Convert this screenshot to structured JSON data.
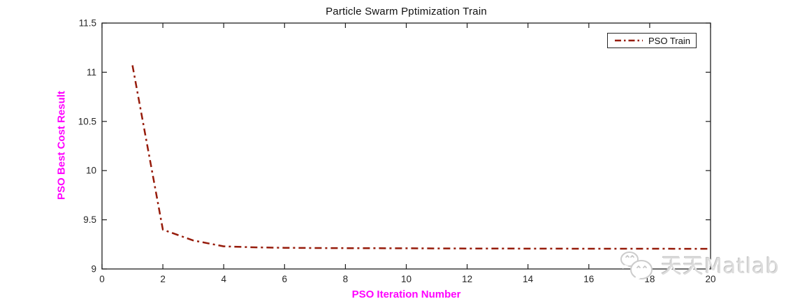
{
  "title": "Particle Swarm Pptimization Train",
  "legend": {
    "label": "PSO Train"
  },
  "watermark": {
    "text": "天天Matlab",
    "icon": "chat-bubbles-icon"
  },
  "colors": {
    "line": "#961B0A",
    "axis": "#1f1f1f",
    "tick_label": "#262626",
    "axis_label": "#FF00FF",
    "title": "#111111",
    "legend_border": "#262626",
    "background": "#FFFFFF",
    "watermark": "#DCDCDC"
  },
  "chart_data": {
    "type": "line",
    "title": "Particle Swarm Pptimization Train",
    "xlabel": "PSO Iteration Number",
    "ylabel": "PSO Best Cost Result",
    "xlim": [
      0,
      20
    ],
    "ylim": [
      9,
      11.5
    ],
    "xticks": [
      0,
      2,
      4,
      6,
      8,
      10,
      12,
      14,
      16,
      18,
      20
    ],
    "yticks": [
      9,
      9.5,
      10,
      10.5,
      11,
      11.5
    ],
    "grid": false,
    "legend_position": "top-right",
    "series": [
      {
        "name": "PSO Train",
        "color": "#961B0A",
        "line_style": "dash-dot",
        "line_width": 2.5,
        "x": [
          1,
          2,
          3,
          4,
          5,
          6,
          7,
          8,
          9,
          10,
          11,
          12,
          13,
          14,
          15,
          16,
          17,
          18,
          19,
          20
        ],
        "y": [
          11.07,
          9.4,
          9.29,
          9.23,
          9.22,
          9.215,
          9.213,
          9.212,
          9.211,
          9.21,
          9.209,
          9.208,
          9.208,
          9.207,
          9.207,
          9.206,
          9.206,
          9.206,
          9.205,
          9.205
        ]
      }
    ]
  }
}
